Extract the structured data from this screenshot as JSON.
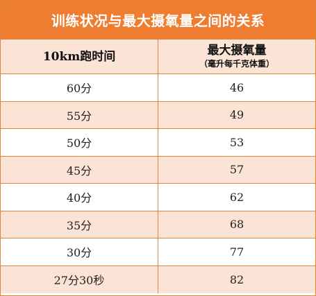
{
  "title": "训练状况与最大摄氧量之间的关系",
  "colors": {
    "header_orange": "#ef7d31",
    "row_tint": "#fbe4d6",
    "border": "#e0863c"
  },
  "columns": {
    "time": {
      "label": "10km跑时间"
    },
    "vo2": {
      "label": "最大摄氧量",
      "sublabel": "（毫升每千克体重）"
    }
  },
  "rows": [
    {
      "time": "60分",
      "vo2": "46"
    },
    {
      "time": "55分",
      "vo2": "49"
    },
    {
      "time": "50分",
      "vo2": "53"
    },
    {
      "time": "45分",
      "vo2": "57"
    },
    {
      "time": "40分",
      "vo2": "62"
    },
    {
      "time": "35分",
      "vo2": "68"
    },
    {
      "time": "30分",
      "vo2": "77"
    },
    {
      "time": "27分30秒",
      "vo2": "82"
    }
  ]
}
